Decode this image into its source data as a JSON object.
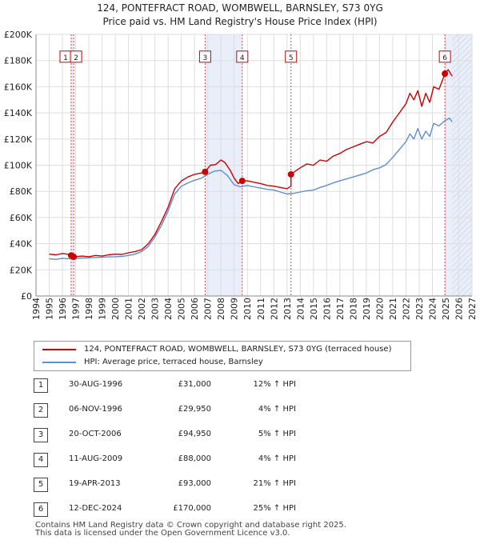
{
  "chart_data": {
    "type": "line",
    "title": "124, PONTEFRACT ROAD, WOMBWELL, BARNSLEY, S73 0YG",
    "subtitle": "Price paid vs. HM Land Registry's House Price Index (HPI)",
    "xlim": [
      1994,
      2027
    ],
    "ylim": [
      0,
      200000
    ],
    "x_ticks": [
      "1994",
      "1995",
      "1996",
      "1997",
      "1998",
      "1999",
      "2000",
      "2001",
      "2002",
      "2003",
      "2004",
      "2005",
      "2006",
      "2007",
      "2008",
      "2009",
      "2010",
      "2011",
      "2012",
      "2013",
      "2014",
      "2015",
      "2016",
      "2017",
      "2018",
      "2019",
      "2020",
      "2021",
      "2022",
      "2023",
      "2024",
      "2025",
      "2026",
      "2027"
    ],
    "y_ticks": [
      {
        "value": 0,
        "label": "£0"
      },
      {
        "value": 20000,
        "label": "£20K"
      },
      {
        "value": 40000,
        "label": "£40K"
      },
      {
        "value": 60000,
        "label": "£60K"
      },
      {
        "value": 80000,
        "label": "£80K"
      },
      {
        "value": 100000,
        "label": "£100K"
      },
      {
        "value": 120000,
        "label": "£120K"
      },
      {
        "value": 140000,
        "label": "£140K"
      },
      {
        "value": 160000,
        "label": "£160K"
      },
      {
        "value": 180000,
        "label": "£180K"
      },
      {
        "value": 200000,
        "label": "£200K"
      }
    ],
    "grid": true,
    "colors": {
      "property": "#cc0000",
      "hpi": "#5b8ed6",
      "shade": "#e8eefa",
      "event_line": "#dd4444",
      "grid": "#dddddd"
    },
    "series": [
      {
        "name": "124, PONTEFRACT ROAD, WOMBWELL, BARNSLEY, S73 0YG (terraced house)",
        "color": "#cc0000",
        "points": [
          [
            1995.0,
            32000
          ],
          [
            1995.5,
            31500
          ],
          [
            1996.0,
            32500
          ],
          [
            1996.4,
            32000
          ],
          [
            1996.66,
            31000
          ],
          [
            1996.85,
            29950
          ],
          [
            1997.5,
            30500
          ],
          [
            1998.0,
            30000
          ],
          [
            1998.5,
            31000
          ],
          [
            1999.0,
            30500
          ],
          [
            1999.5,
            31500
          ],
          [
            2000.0,
            32000
          ],
          [
            2000.5,
            31800
          ],
          [
            2001.0,
            33000
          ],
          [
            2001.5,
            34000
          ],
          [
            2002.0,
            35500
          ],
          [
            2002.5,
            40000
          ],
          [
            2003.0,
            47000
          ],
          [
            2003.5,
            57000
          ],
          [
            2004.0,
            68000
          ],
          [
            2004.5,
            82000
          ],
          [
            2005.0,
            88000
          ],
          [
            2005.5,
            91000
          ],
          [
            2006.0,
            93000
          ],
          [
            2006.5,
            94000
          ],
          [
            2006.8,
            94950
          ],
          [
            2007.2,
            100000
          ],
          [
            2007.6,
            100500
          ],
          [
            2008.0,
            104000
          ],
          [
            2008.3,
            102000
          ],
          [
            2008.7,
            96000
          ],
          [
            2009.0,
            90000
          ],
          [
            2009.3,
            86000
          ],
          [
            2009.61,
            88000
          ],
          [
            2010.0,
            88000
          ],
          [
            2010.5,
            87000
          ],
          [
            2011.0,
            86000
          ],
          [
            2011.5,
            84500
          ],
          [
            2012.0,
            84000
          ],
          [
            2012.5,
            83000
          ],
          [
            2013.0,
            82000
          ],
          [
            2013.3,
            84000
          ],
          [
            2013.3,
            93000
          ],
          [
            2013.7,
            96000
          ],
          [
            2014.0,
            98000
          ],
          [
            2014.5,
            101000
          ],
          [
            2015.0,
            100000
          ],
          [
            2015.5,
            104000
          ],
          [
            2016.0,
            103000
          ],
          [
            2016.5,
            107000
          ],
          [
            2017.0,
            109000
          ],
          [
            2017.5,
            112000
          ],
          [
            2018.0,
            114000
          ],
          [
            2018.5,
            116000
          ],
          [
            2019.0,
            118000
          ],
          [
            2019.5,
            117000
          ],
          [
            2020.0,
            122000
          ],
          [
            2020.5,
            125000
          ],
          [
            2021.0,
            133000
          ],
          [
            2021.5,
            140000
          ],
          [
            2022.0,
            147000
          ],
          [
            2022.3,
            155000
          ],
          [
            2022.6,
            150000
          ],
          [
            2022.9,
            157000
          ],
          [
            2023.2,
            145000
          ],
          [
            2023.5,
            155000
          ],
          [
            2023.8,
            148000
          ],
          [
            2024.1,
            160000
          ],
          [
            2024.5,
            158000
          ],
          [
            2024.95,
            170000
          ],
          [
            2025.2,
            173000
          ],
          [
            2025.5,
            168000
          ]
        ]
      },
      {
        "name": "HPI: Average price, terraced house, Barnsley",
        "color": "#5b8ed6",
        "points": [
          [
            1995.0,
            28500
          ],
          [
            1995.5,
            28000
          ],
          [
            1996.0,
            28800
          ],
          [
            1996.5,
            28500
          ],
          [
            1997.0,
            28700
          ],
          [
            1997.5,
            29000
          ],
          [
            1998.0,
            29200
          ],
          [
            1998.5,
            29500
          ],
          [
            1999.0,
            29600
          ],
          [
            1999.5,
            29900
          ],
          [
            2000.0,
            30000
          ],
          [
            2000.5,
            30300
          ],
          [
            2001.0,
            31000
          ],
          [
            2001.5,
            32000
          ],
          [
            2002.0,
            34000
          ],
          [
            2002.5,
            38000
          ],
          [
            2003.0,
            45000
          ],
          [
            2003.5,
            54000
          ],
          [
            2004.0,
            65000
          ],
          [
            2004.5,
            78000
          ],
          [
            2005.0,
            84000
          ],
          [
            2005.5,
            86500
          ],
          [
            2006.0,
            88500
          ],
          [
            2006.5,
            90000
          ],
          [
            2007.0,
            93000
          ],
          [
            2007.5,
            95500
          ],
          [
            2008.0,
            96000
          ],
          [
            2008.5,
            92000
          ],
          [
            2009.0,
            85000
          ],
          [
            2009.5,
            83500
          ],
          [
            2010.0,
            84500
          ],
          [
            2010.5,
            83500
          ],
          [
            2011.0,
            82500
          ],
          [
            2011.5,
            81500
          ],
          [
            2012.0,
            81000
          ],
          [
            2012.5,
            79500
          ],
          [
            2013.0,
            78000
          ],
          [
            2013.5,
            78500
          ],
          [
            2014.0,
            79500
          ],
          [
            2014.5,
            80500
          ],
          [
            2015.0,
            81000
          ],
          [
            2015.5,
            83000
          ],
          [
            2016.0,
            84500
          ],
          [
            2016.5,
            86500
          ],
          [
            2017.0,
            88000
          ],
          [
            2017.5,
            89500
          ],
          [
            2018.0,
            91000
          ],
          [
            2018.5,
            92500
          ],
          [
            2019.0,
            94000
          ],
          [
            2019.5,
            96500
          ],
          [
            2020.0,
            98000
          ],
          [
            2020.5,
            100500
          ],
          [
            2021.0,
            106000
          ],
          [
            2021.5,
            112000
          ],
          [
            2022.0,
            118000
          ],
          [
            2022.3,
            124000
          ],
          [
            2022.6,
            120000
          ],
          [
            2022.9,
            128000
          ],
          [
            2023.2,
            120000
          ],
          [
            2023.5,
            126000
          ],
          [
            2023.8,
            122000
          ],
          [
            2024.1,
            132000
          ],
          [
            2024.5,
            130000
          ],
          [
            2024.95,
            134000
          ],
          [
            2025.3,
            136000
          ],
          [
            2025.5,
            133000
          ]
        ]
      }
    ],
    "transactions": [
      {
        "id": "1",
        "date": "30-AUG-1996",
        "x": 1996.66,
        "price": 31000,
        "price_label": "£31,000",
        "hpi_label": "12% ↑ HPI"
      },
      {
        "id": "2",
        "date": "06-NOV-1996",
        "x": 1996.85,
        "price": 29950,
        "price_label": "£29,950",
        "hpi_label": "4% ↑ HPI"
      },
      {
        "id": "3",
        "date": "20-OCT-2006",
        "x": 2006.8,
        "price": 94950,
        "price_label": "£94,950",
        "hpi_label": "5% ↑ HPI"
      },
      {
        "id": "4",
        "date": "11-AUG-2009",
        "x": 2009.61,
        "price": 88000,
        "price_label": "£88,000",
        "hpi_label": "4% ↑ HPI"
      },
      {
        "id": "5",
        "date": "19-APR-2013",
        "x": 2013.3,
        "price": 93000,
        "price_label": "£93,000",
        "hpi_label": "21% ↑ HPI"
      },
      {
        "id": "6",
        "date": "12-DEC-2024",
        "x": 2024.95,
        "price": 170000,
        "price_label": "£170,000",
        "hpi_label": "25% ↑ HPI"
      }
    ],
    "marker_label_value": 183000,
    "shaded_ranges": [
      [
        1996.66,
        1996.85
      ],
      [
        2006.8,
        2009.61
      ],
      [
        2024.95,
        2027
      ]
    ],
    "projection_start": 2025.5
  },
  "legend": {
    "property_label": "124, PONTEFRACT ROAD, WOMBWELL, BARNSLEY, S73 0YG (terraced house)",
    "hpi_label": "HPI: Average price, terraced house, Barnsley"
  },
  "footer": {
    "line1": "Contains HM Land Registry data © Crown copyright and database right 2025.",
    "line2": "This data is licensed under the Open Government Licence v3.0."
  }
}
